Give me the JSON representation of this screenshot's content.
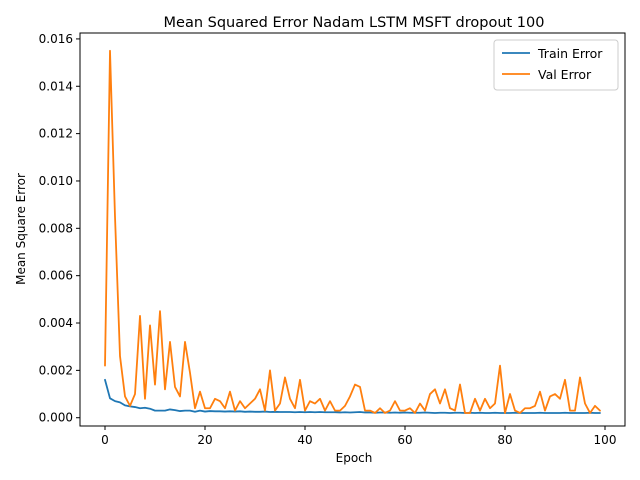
{
  "chart_data": {
    "type": "line",
    "title": "Mean Squared Error  Nadam LSTM MSFT dropout 100",
    "xlabel": "Epoch",
    "ylabel": "Mean Square Error",
    "xlim": [
      -5,
      104
    ],
    "ylim": [
      -0.00035,
      0.01625
    ],
    "xticks": [
      0,
      20,
      40,
      60,
      80,
      100
    ],
    "yticks": [
      0.0,
      0.002,
      0.004,
      0.006,
      0.008,
      0.01,
      0.012,
      0.014,
      0.016
    ],
    "ytick_labels": [
      "0.000",
      "0.002",
      "0.004",
      "0.006",
      "0.008",
      "0.010",
      "0.012",
      "0.014",
      "0.016"
    ],
    "grid": false,
    "legend_position": "top-right",
    "series": [
      {
        "name": "Train Error",
        "color": "#1f77b4",
        "x": [
          0,
          1,
          2,
          3,
          4,
          5,
          6,
          7,
          8,
          9,
          10,
          11,
          12,
          13,
          14,
          15,
          16,
          17,
          18,
          19,
          20,
          21,
          22,
          23,
          24,
          25,
          26,
          27,
          28,
          29,
          30,
          31,
          32,
          33,
          34,
          35,
          36,
          37,
          38,
          39,
          40,
          41,
          42,
          43,
          44,
          45,
          46,
          47,
          48,
          49,
          50,
          51,
          52,
          53,
          54,
          55,
          56,
          57,
          58,
          59,
          60,
          61,
          62,
          63,
          64,
          65,
          66,
          67,
          68,
          69,
          70,
          71,
          72,
          73,
          74,
          75,
          76,
          77,
          78,
          79,
          80,
          81,
          82,
          83,
          84,
          85,
          86,
          87,
          88,
          89,
          90,
          91,
          92,
          93,
          94,
          95,
          96,
          97,
          98,
          99
        ],
        "values": [
          0.0016,
          0.00082,
          0.0007,
          0.00065,
          0.00052,
          0.00048,
          0.00045,
          0.0004,
          0.00042,
          0.00038,
          0.0003,
          0.0003,
          0.0003,
          0.00035,
          0.00032,
          0.00028,
          0.0003,
          0.0003,
          0.00025,
          0.0003,
          0.00026,
          0.00028,
          0.00027,
          0.00027,
          0.00026,
          0.00027,
          0.00026,
          0.00027,
          0.00025,
          0.00026,
          0.00025,
          0.00025,
          0.00026,
          0.00024,
          0.00025,
          0.00024,
          0.00024,
          0.00024,
          0.00023,
          0.00024,
          0.00023,
          0.00024,
          0.00023,
          0.00024,
          0.00023,
          0.00023,
          0.00023,
          0.00022,
          0.00023,
          0.00022,
          0.00023,
          0.00024,
          0.00022,
          0.00022,
          0.00021,
          0.00022,
          0.00022,
          0.00021,
          0.00022,
          0.00021,
          0.00022,
          0.00021,
          0.00021,
          0.00021,
          0.00022,
          0.00021,
          0.0002,
          0.00021,
          0.00021,
          0.0002,
          0.00021,
          0.00021,
          0.0002,
          0.00021,
          0.0002,
          0.00021,
          0.0002,
          0.0002,
          0.00021,
          0.0002,
          0.0002,
          0.0002,
          0.00021,
          0.0002,
          0.0002,
          0.0002,
          0.0002,
          0.00021,
          0.0002,
          0.0002,
          0.0002,
          0.0002,
          0.00021,
          0.0002,
          0.0002,
          0.0002,
          0.0002,
          0.00021,
          0.0002,
          0.0002
        ]
      },
      {
        "name": "Val Error",
        "color": "#ff7f0e",
        "x": [
          0,
          1,
          2,
          3,
          4,
          5,
          6,
          7,
          8,
          9,
          10,
          11,
          12,
          13,
          14,
          15,
          16,
          17,
          18,
          19,
          20,
          21,
          22,
          23,
          24,
          25,
          26,
          27,
          28,
          29,
          30,
          31,
          32,
          33,
          34,
          35,
          36,
          37,
          38,
          39,
          40,
          41,
          42,
          43,
          44,
          45,
          46,
          47,
          48,
          49,
          50,
          51,
          52,
          53,
          54,
          55,
          56,
          57,
          58,
          59,
          60,
          61,
          62,
          63,
          64,
          65,
          66,
          67,
          68,
          69,
          70,
          71,
          72,
          73,
          74,
          75,
          76,
          77,
          78,
          79,
          80,
          81,
          82,
          83,
          84,
          85,
          86,
          87,
          88,
          89,
          90,
          91,
          92,
          93,
          94,
          95,
          96,
          97,
          98,
          99
        ],
        "values": [
          0.0022,
          0.0155,
          0.0085,
          0.0026,
          0.0009,
          0.0005,
          0.001,
          0.0043,
          0.0008,
          0.0039,
          0.0014,
          0.0045,
          0.0012,
          0.0032,
          0.0013,
          0.0009,
          0.0032,
          0.0019,
          0.0004,
          0.0011,
          0.0004,
          0.0004,
          0.0008,
          0.0007,
          0.0004,
          0.0011,
          0.0003,
          0.0007,
          0.0004,
          0.0006,
          0.0008,
          0.0012,
          0.0003,
          0.002,
          0.0003,
          0.0006,
          0.0017,
          0.0008,
          0.0004,
          0.0016,
          0.0003,
          0.0007,
          0.0006,
          0.0008,
          0.0003,
          0.0007,
          0.0003,
          0.0003,
          0.0005,
          0.0009,
          0.0014,
          0.0013,
          0.0003,
          0.0003,
          0.0002,
          0.0004,
          0.0002,
          0.0003,
          0.0007,
          0.0003,
          0.0003,
          0.0004,
          0.0002,
          0.0006,
          0.0003,
          0.001,
          0.0012,
          0.0006,
          0.0012,
          0.0004,
          0.0003,
          0.0014,
          0.0002,
          0.0002,
          0.0008,
          0.0003,
          0.0008,
          0.0004,
          0.0006,
          0.0022,
          0.0002,
          0.001,
          0.0003,
          0.0002,
          0.0004,
          0.0004,
          0.0005,
          0.0011,
          0.0003,
          0.0009,
          0.001,
          0.0008,
          0.0016,
          0.0003,
          0.0003,
          0.0017,
          0.0006,
          0.0002,
          0.0005,
          0.0003
        ]
      }
    ]
  }
}
